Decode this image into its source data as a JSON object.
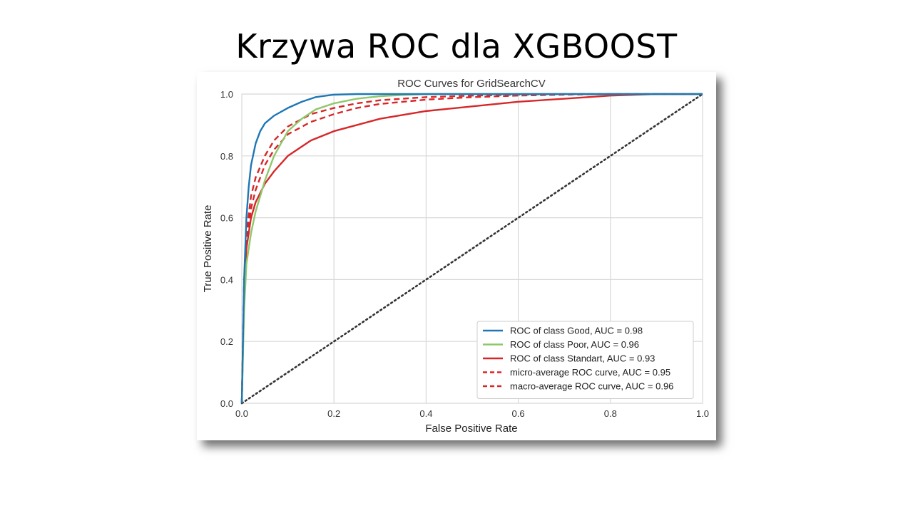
{
  "slide": {
    "title": "Krzywa ROC dla XGBOOST"
  },
  "chart_data": {
    "type": "line",
    "title": "ROC Curves for GridSearchCV",
    "xlabel": "False Positive Rate",
    "ylabel": "True Positive Rate",
    "xlim": [
      0,
      1
    ],
    "ylim": [
      0,
      1
    ],
    "xticks": [
      "0.0",
      "0.2",
      "0.4",
      "0.6",
      "0.8",
      "1.0"
    ],
    "yticks": [
      "0.0",
      "0.2",
      "0.4",
      "0.6",
      "0.8",
      "1.0"
    ],
    "grid": true,
    "legend_position": "lower-right",
    "series": [
      {
        "name": "ROC of class Good, AUC = 0.98",
        "color": "#1f77b4",
        "style": "solid",
        "x": [
          0,
          0.005,
          0.01,
          0.015,
          0.02,
          0.03,
          0.04,
          0.05,
          0.07,
          0.1,
          0.13,
          0.16,
          0.2,
          0.25,
          0.3,
          1.0
        ],
        "y": [
          0,
          0.4,
          0.6,
          0.7,
          0.77,
          0.84,
          0.88,
          0.905,
          0.93,
          0.955,
          0.975,
          0.99,
          0.998,
          1.0,
          1.0,
          1.0
        ]
      },
      {
        "name": "ROC of class Poor, AUC = 0.96",
        "color": "#8fc86b",
        "style": "solid",
        "x": [
          0,
          0.005,
          0.01,
          0.02,
          0.03,
          0.05,
          0.07,
          0.1,
          0.13,
          0.16,
          0.2,
          0.25,
          0.3,
          0.35,
          0.4,
          0.5,
          1.0
        ],
        "y": [
          0,
          0.3,
          0.45,
          0.55,
          0.62,
          0.72,
          0.8,
          0.88,
          0.92,
          0.95,
          0.97,
          0.985,
          0.993,
          0.997,
          1.0,
          1.0,
          1.0
        ]
      },
      {
        "name": "ROC of class Standart, AUC = 0.93",
        "color": "#d62728",
        "style": "solid",
        "x": [
          0,
          0.005,
          0.01,
          0.02,
          0.03,
          0.05,
          0.07,
          0.1,
          0.15,
          0.2,
          0.3,
          0.4,
          0.5,
          0.6,
          0.7,
          0.8,
          0.9,
          1.0
        ],
        "y": [
          0,
          0.35,
          0.5,
          0.6,
          0.65,
          0.71,
          0.75,
          0.8,
          0.85,
          0.88,
          0.92,
          0.945,
          0.96,
          0.975,
          0.985,
          0.995,
          1.0,
          1.0
        ]
      },
      {
        "name": "micro-average ROC curve, AUC = 0.95",
        "color": "#d62728",
        "style": "dashed",
        "x": [
          0,
          0.005,
          0.01,
          0.02,
          0.03,
          0.05,
          0.07,
          0.1,
          0.15,
          0.2,
          0.25,
          0.3,
          0.4,
          0.5,
          0.6,
          0.7,
          0.8,
          1.0
        ],
        "y": [
          0,
          0.38,
          0.52,
          0.63,
          0.69,
          0.77,
          0.82,
          0.87,
          0.91,
          0.935,
          0.955,
          0.968,
          0.982,
          0.99,
          0.995,
          0.998,
          1.0,
          1.0
        ]
      },
      {
        "name": "macro-average ROC curve, AUC = 0.96",
        "color": "#d62728",
        "style": "dashed",
        "x": [
          0,
          0.005,
          0.01,
          0.02,
          0.03,
          0.05,
          0.07,
          0.1,
          0.15,
          0.2,
          0.25,
          0.3,
          0.4,
          0.5,
          0.6,
          0.7,
          1.0
        ],
        "y": [
          0,
          0.4,
          0.55,
          0.67,
          0.73,
          0.8,
          0.85,
          0.895,
          0.935,
          0.955,
          0.97,
          0.98,
          0.99,
          0.995,
          0.998,
          1.0,
          1.0
        ]
      },
      {
        "name": "",
        "color": "#333333",
        "style": "dotted",
        "legend": false,
        "x": [
          0,
          1
        ],
        "y": [
          0,
          1
        ]
      }
    ]
  }
}
